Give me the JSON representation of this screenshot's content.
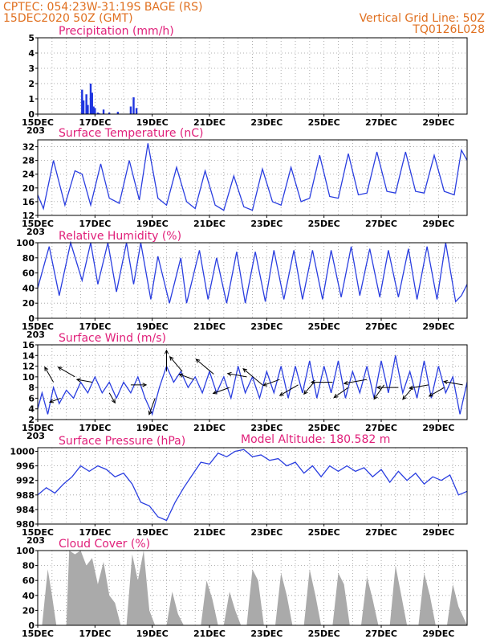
{
  "header": {
    "left_line1": "CPTEC:  054:23W-31:19S  BAGE (RS)",
    "left_line2": "15DEC2020 50Z (GMT)",
    "right_line1": "Vertical Grid Line: 50Z",
    "right_line2": "TQ0126L028"
  },
  "model_altitude_label": "Model Altitude: 180.582 m",
  "colors": {
    "header": "#e07020",
    "title": "#e0207a",
    "series": "#2a3ee0",
    "cloud": "#aaaaaa",
    "precip": "#1f35e0"
  },
  "chart_data": [
    {
      "id": "precip",
      "type": "bar",
      "title": "Precipitation (mm/h)",
      "x_range": [
        0,
        15
      ],
      "ylim": [
        0,
        5
      ],
      "yticks": [
        0,
        1,
        2,
        3,
        4,
        5
      ],
      "x": [
        1.55,
        1.6,
        1.7,
        1.75,
        1.85,
        1.9,
        1.95,
        2.0,
        2.1,
        2.15,
        2.3,
        2.5,
        2.8,
        3.25,
        3.35,
        3.45
      ],
      "values": [
        1.6,
        0.9,
        1.3,
        0.6,
        2.0,
        1.4,
        0.5,
        0.4,
        0.1,
        0.05,
        0.3,
        0.1,
        0.15,
        0.5,
        1.1,
        0.4
      ]
    },
    {
      "id": "temp",
      "type": "line",
      "title": "Surface Temperature (nC)",
      "x_range": [
        0,
        15
      ],
      "ylim": [
        12,
        34
      ],
      "yticks": [
        12,
        16,
        20,
        24,
        28,
        32
      ],
      "x": [
        0,
        0.2,
        0.55,
        0.95,
        1.3,
        1.55,
        1.85,
        2.2,
        2.5,
        2.85,
        3.2,
        3.55,
        3.85,
        4.2,
        4.5,
        4.85,
        5.2,
        5.5,
        5.85,
        6.2,
        6.5,
        6.85,
        7.2,
        7.5,
        7.85,
        8.2,
        8.5,
        8.85,
        9.2,
        9.5,
        9.85,
        10.2,
        10.5,
        10.85,
        11.2,
        11.5,
        11.85,
        12.2,
        12.5,
        12.85,
        13.2,
        13.5,
        13.85,
        14.2,
        14.55,
        14.8,
        15
      ],
      "values": [
        18,
        14,
        28,
        15,
        25,
        24,
        15,
        27,
        17,
        15.5,
        28,
        16.5,
        33,
        17,
        15,
        26,
        16,
        14,
        25,
        15,
        13.5,
        23.5,
        14.5,
        13.5,
        25.5,
        16,
        15,
        26,
        16,
        17,
        29.5,
        17.5,
        17,
        30,
        18,
        18.5,
        30.5,
        19,
        18.5,
        30.5,
        19,
        18.5,
        29.5,
        19,
        18,
        31,
        28
      ]
    },
    {
      "id": "rh",
      "type": "line",
      "title": "Relative Humidity (%)",
      "x_range": [
        0,
        15
      ],
      "ylim": [
        0,
        100
      ],
      "yticks": [
        0,
        20,
        40,
        60,
        80,
        100
      ],
      "x": [
        0,
        0.4,
        0.75,
        1.15,
        1.55,
        1.85,
        2.1,
        2.45,
        2.75,
        3.1,
        3.35,
        3.6,
        3.95,
        4.2,
        4.6,
        5.0,
        5.2,
        5.65,
        5.95,
        6.25,
        6.6,
        6.95,
        7.25,
        7.6,
        7.95,
        8.25,
        8.6,
        8.95,
        9.25,
        9.6,
        9.95,
        10.25,
        10.6,
        10.95,
        11.25,
        11.6,
        11.95,
        12.25,
        12.6,
        12.95,
        13.25,
        13.6,
        13.95,
        14.25,
        14.6,
        14.8,
        15
      ],
      "values": [
        40,
        95,
        30,
        100,
        50,
        100,
        45,
        100,
        35,
        100,
        45,
        100,
        25,
        82,
        20,
        80,
        20,
        90,
        25,
        80,
        20,
        88,
        20,
        88,
        22,
        90,
        25,
        90,
        25,
        90,
        25,
        90,
        28,
        95,
        30,
        92,
        28,
        90,
        28,
        92,
        25,
        95,
        25,
        100,
        22,
        30,
        45
      ]
    },
    {
      "id": "wind",
      "type": "line",
      "title": "Surface Wind (m/s)",
      "x_range": [
        0,
        15
      ],
      "ylim": [
        2,
        16
      ],
      "yticks": [
        2,
        4,
        6,
        8,
        10,
        12,
        14,
        16
      ],
      "x": [
        0,
        0.15,
        0.35,
        0.55,
        0.75,
        1.0,
        1.25,
        1.5,
        1.75,
        2.0,
        2.25,
        2.5,
        2.75,
        3.0,
        3.25,
        3.5,
        3.75,
        4.0,
        4.25,
        4.5,
        4.75,
        5.0,
        5.25,
        5.5,
        5.75,
        6.0,
        6.25,
        6.5,
        6.75,
        7.0,
        7.25,
        7.5,
        7.75,
        8.0,
        8.25,
        8.5,
        8.75,
        9.0,
        9.25,
        9.5,
        9.75,
        10.0,
        10.25,
        10.5,
        10.75,
        11.0,
        11.25,
        11.5,
        11.75,
        12.0,
        12.25,
        12.5,
        12.75,
        13.0,
        13.25,
        13.5,
        13.75,
        14.0,
        14.25,
        14.5,
        14.75,
        15
      ],
      "values": [
        4,
        7,
        3,
        8,
        5,
        7.5,
        6,
        9,
        7,
        10,
        7,
        9,
        6,
        9,
        7,
        10,
        6,
        3,
        8,
        12,
        9,
        11,
        8,
        10,
        7,
        11,
        7,
        10,
        6,
        12,
        7,
        10,
        6,
        11,
        7,
        12,
        6,
        12,
        7,
        13,
        6,
        12,
        7,
        13,
        6,
        11,
        7,
        12,
        6,
        13,
        7,
        14,
        7,
        11,
        6,
        13,
        6,
        12,
        7,
        10,
        3,
        9
      ]
    },
    {
      "id": "pres",
      "type": "line",
      "title": "Surface Pressure (hPa)",
      "x_range": [
        0,
        15
      ],
      "ylim": [
        980,
        1001
      ],
      "yticks": [
        980,
        984,
        988,
        992,
        996,
        1000
      ],
      "x": [
        0,
        0.3,
        0.6,
        0.9,
        1.2,
        1.5,
        1.8,
        2.1,
        2.4,
        2.7,
        3.0,
        3.3,
        3.6,
        3.9,
        4.2,
        4.5,
        4.8,
        5.1,
        5.4,
        5.7,
        6.0,
        6.3,
        6.6,
        6.9,
        7.2,
        7.5,
        7.8,
        8.1,
        8.4,
        8.7,
        9.0,
        9.3,
        9.6,
        9.9,
        10.2,
        10.5,
        10.8,
        11.1,
        11.4,
        11.7,
        12.0,
        12.3,
        12.6,
        12.9,
        13.2,
        13.5,
        13.8,
        14.1,
        14.4,
        14.7,
        15
      ],
      "values": [
        988,
        990,
        988.5,
        991,
        993,
        996,
        994.5,
        996,
        995,
        993,
        994,
        991,
        986,
        985,
        982,
        981,
        986,
        990,
        993.5,
        997,
        996.5,
        999.5,
        998.5,
        1000,
        1000.5,
        998.5,
        999,
        997.5,
        998,
        996,
        997,
        994,
        996,
        993,
        996,
        994.5,
        996,
        994.5,
        995.5,
        993,
        995,
        991.5,
        994.5,
        992,
        994,
        991,
        993,
        992,
        993.5,
        988,
        989
      ]
    },
    {
      "id": "cloud",
      "type": "area",
      "title": "Cloud Cover (%)",
      "x_range": [
        0,
        15
      ],
      "ylim": [
        0,
        100
      ],
      "yticks": [
        0,
        20,
        40,
        60,
        80,
        100
      ],
      "x": [
        0,
        0.15,
        0.35,
        0.5,
        0.65,
        0.8,
        1.0,
        1.1,
        1.3,
        1.5,
        1.7,
        1.9,
        2.1,
        2.3,
        2.5,
        2.7,
        2.9,
        3.1,
        3.3,
        3.5,
        3.7,
        3.9,
        4.1,
        4.3,
        4.5,
        4.7,
        4.9,
        5.1,
        5.3,
        5.5,
        5.7,
        5.9,
        6.1,
        6.3,
        6.5,
        6.7,
        6.9,
        7.1,
        7.3,
        7.5,
        7.7,
        7.9,
        8.1,
        8.3,
        8.5,
        8.7,
        8.9,
        9.1,
        9.3,
        9.5,
        9.7,
        9.9,
        10.1,
        10.3,
        10.5,
        10.7,
        10.9,
        11.1,
        11.3,
        11.5,
        11.7,
        11.9,
        12.1,
        12.3,
        12.5,
        12.7,
        12.9,
        13.1,
        13.3,
        13.5,
        13.7,
        13.9,
        14.1,
        14.3,
        14.5,
        14.7,
        15
      ],
      "values": [
        0,
        0,
        75,
        40,
        0,
        0,
        0,
        100,
        95,
        100,
        80,
        90,
        55,
        85,
        40,
        30,
        0,
        0,
        95,
        60,
        100,
        20,
        0,
        0,
        0,
        45,
        15,
        0,
        0,
        0,
        0,
        60,
        35,
        0,
        0,
        45,
        20,
        0,
        0,
        75,
        60,
        0,
        0,
        0,
        70,
        40,
        0,
        0,
        0,
        75,
        40,
        0,
        0,
        0,
        70,
        55,
        0,
        0,
        0,
        65,
        35,
        0,
        0,
        0,
        80,
        40,
        0,
        0,
        0,
        70,
        40,
        0,
        0,
        0,
        55,
        25,
        0
      ]
    }
  ],
  "wind_arrows": {
    "x": [
      0.55,
      0.8,
      1.3,
      1.9,
      2.5,
      3.25,
      4.1,
      4.5,
      5.05,
      5.45,
      6.15,
      6.7,
      7.3,
      7.85,
      8.45,
      9.1,
      9.65,
      10.3,
      10.85,
      11.5,
      12.1,
      12.6,
      13.1,
      13.65,
      14.2,
      14.85
    ],
    "y": [
      9,
      6,
      10,
      9,
      7,
      8.5,
      6,
      11,
      11,
      9.5,
      10.5,
      8,
      10,
      8.5,
      9.5,
      8.5,
      9,
      9,
      8,
      9.5,
      8.5,
      8,
      8,
      8.5,
      8,
      8.5
    ],
    "angle": [
      120,
      200,
      150,
      170,
      300,
      0,
      250,
      90,
      130,
      160,
      140,
      200,
      170,
      140,
      200,
      210,
      230,
      180,
      215,
      190,
      235,
      180,
      230,
      190,
      210,
      170
    ],
    "speed": [
      9,
      6,
      10,
      8,
      6,
      8,
      9,
      11,
      10,
      8,
      12,
      9,
      10,
      13,
      9,
      11,
      8,
      11,
      9,
      12,
      9,
      11,
      8,
      10,
      9,
      10
    ]
  },
  "date_labels": [
    "15DEC",
    "17DEC",
    "19DEC",
    "21DEC",
    "23DEC",
    "25DEC",
    "27DEC",
    "29DEC"
  ],
  "cut_label": "203"
}
